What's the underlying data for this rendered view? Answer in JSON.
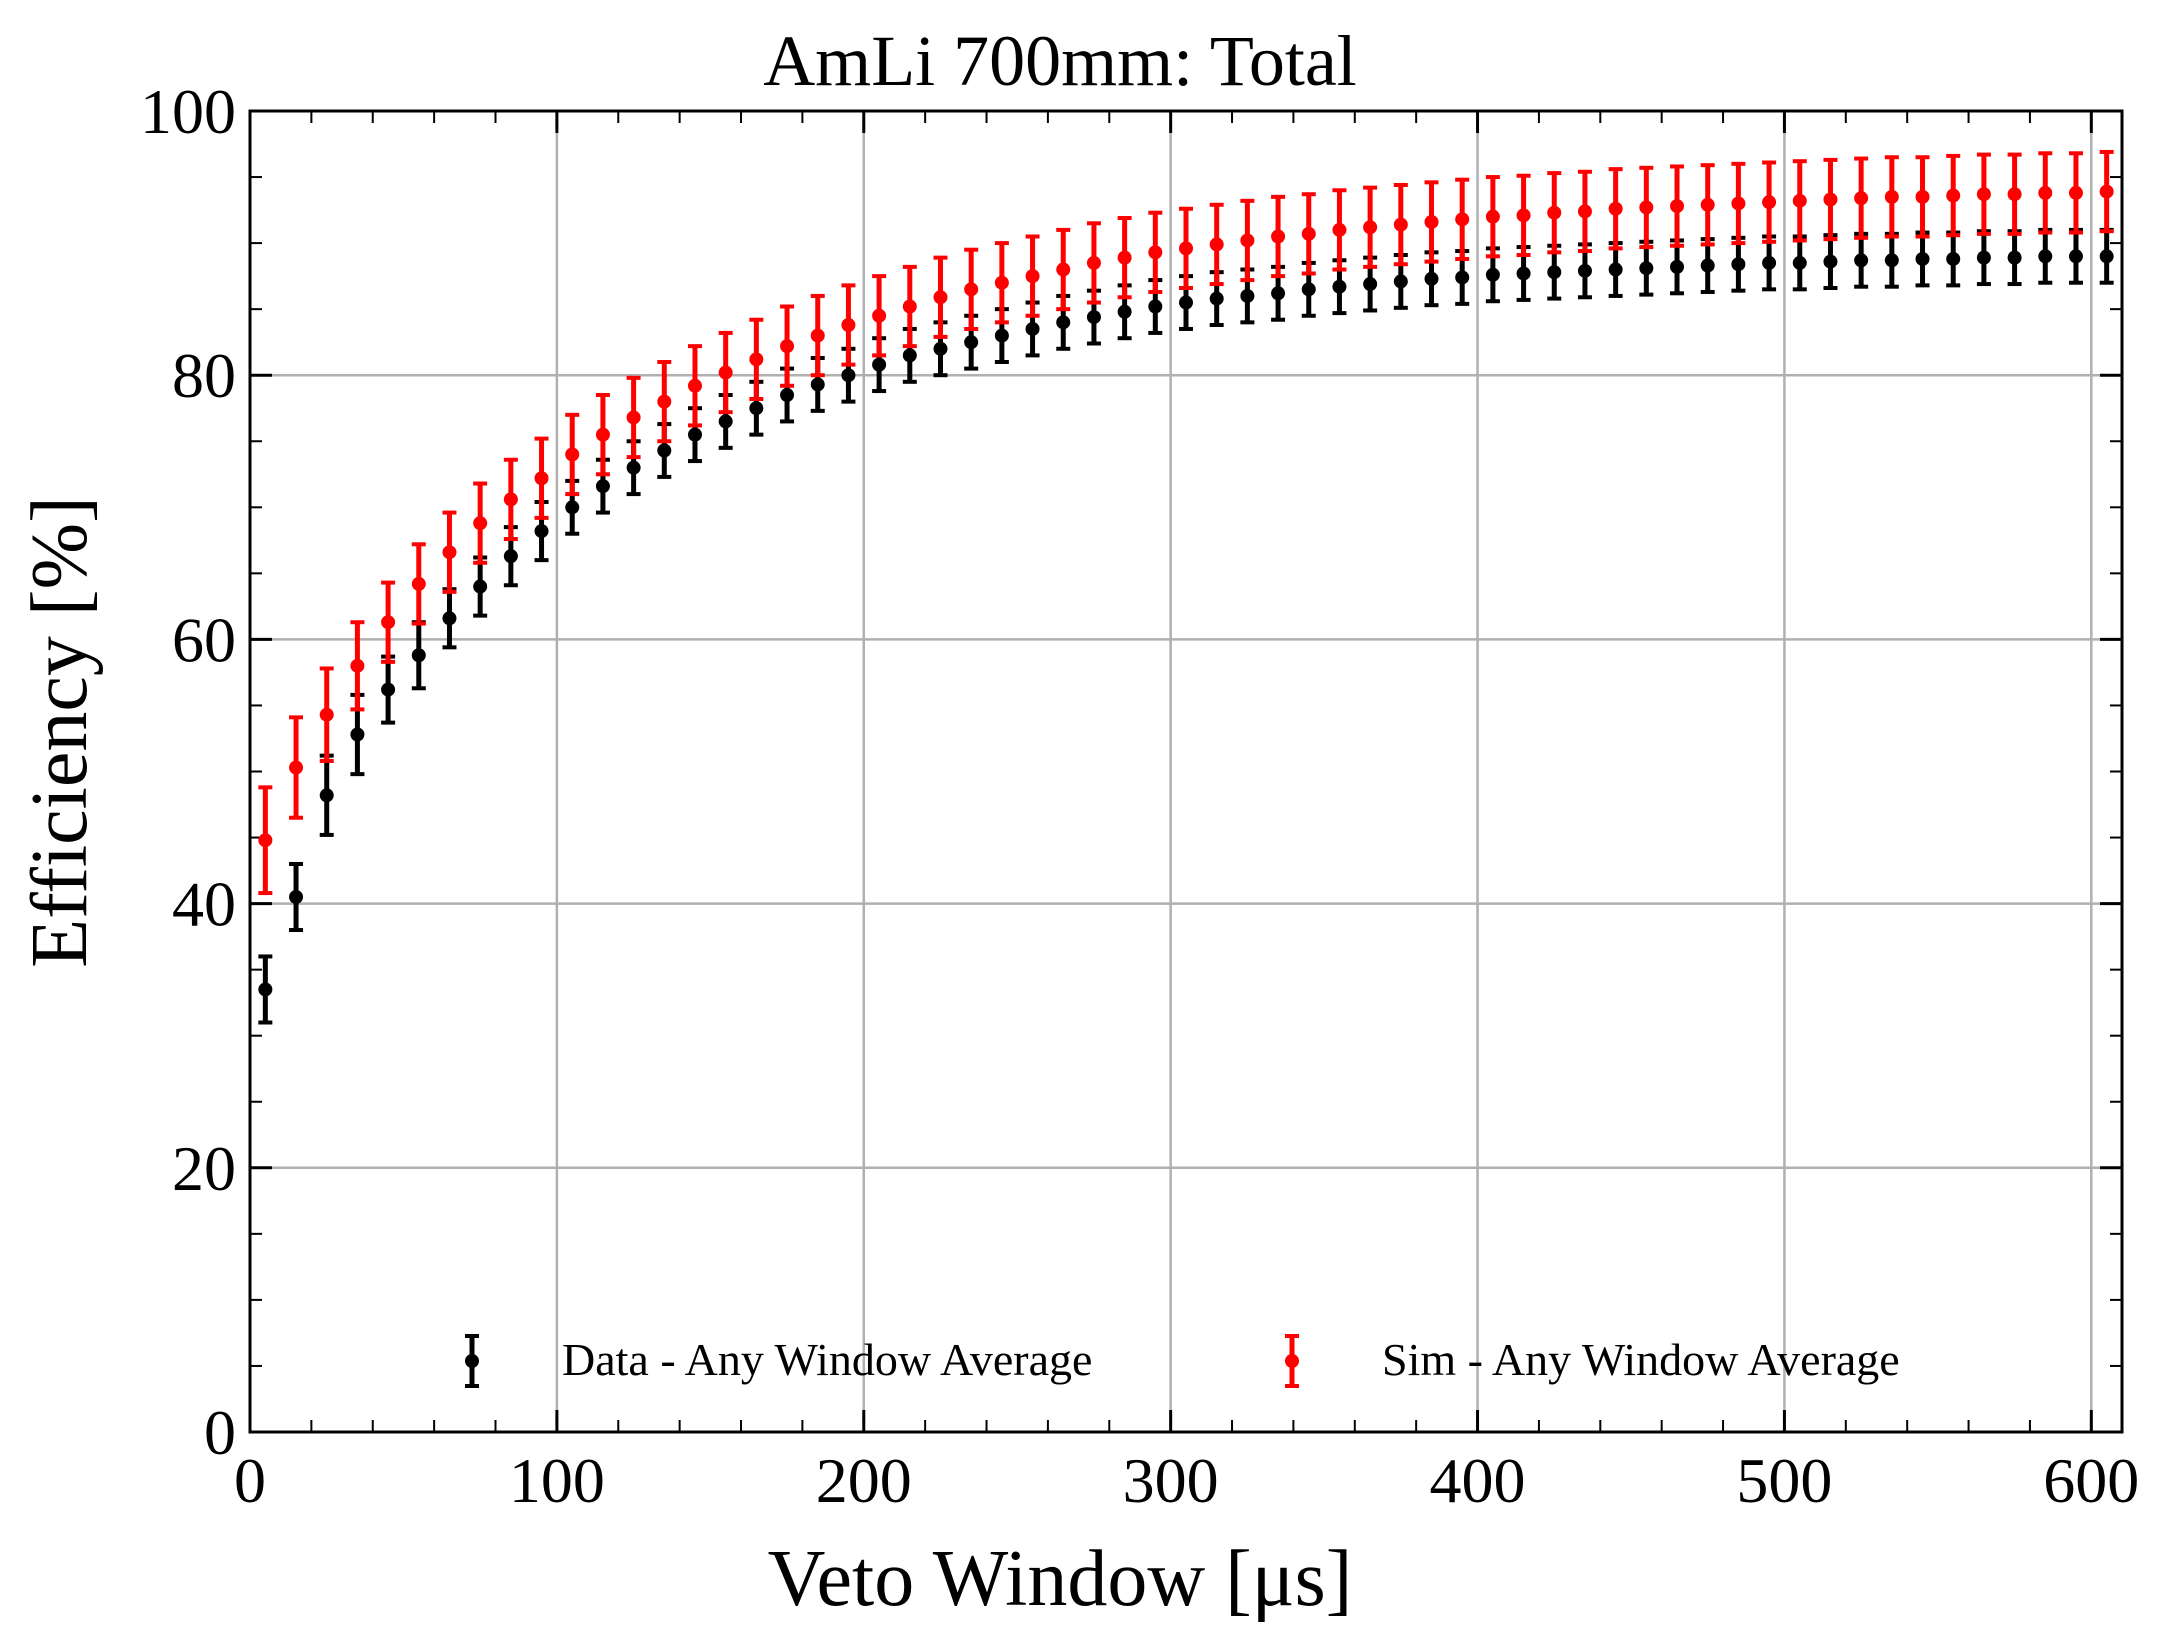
{
  "chart_data": {
    "type": "scatter",
    "title": "AmLi 700mm: Total",
    "xlabel": "Veto Window [μs]",
    "ylabel": "Efficiency [%]",
    "xlim": [
      0,
      610
    ],
    "ylim": [
      0,
      100
    ],
    "xticks": [
      "0",
      "100",
      "200",
      "300",
      "400",
      "500",
      "600"
    ],
    "yticks": [
      "0",
      "20",
      "40",
      "60",
      "80",
      "100"
    ],
    "grid": true,
    "legend_placement": "bottom-center",
    "legend_columns": 2,
    "x": [
      5,
      15,
      25,
      35,
      45,
      55,
      65,
      75,
      85,
      95,
      105,
      115,
      125,
      135,
      145,
      155,
      165,
      175,
      185,
      195,
      205,
      215,
      225,
      235,
      245,
      255,
      265,
      275,
      285,
      295,
      305,
      315,
      325,
      335,
      345,
      355,
      365,
      375,
      385,
      395,
      405,
      415,
      425,
      435,
      445,
      455,
      465,
      475,
      485,
      495,
      505,
      515,
      525,
      535,
      545,
      555,
      565,
      575,
      585,
      595,
      605
    ],
    "series": [
      {
        "name": "Data - Any Window Average",
        "color": "#000000",
        "values": [
          33.5,
          40.5,
          48.2,
          52.8,
          56.2,
          58.8,
          61.6,
          64.0,
          66.3,
          68.2,
          70.0,
          71.6,
          73.0,
          74.3,
          75.5,
          76.5,
          77.5,
          78.5,
          79.3,
          80.0,
          80.8,
          81.5,
          82.0,
          82.5,
          83.0,
          83.5,
          84.0,
          84.4,
          84.8,
          85.2,
          85.5,
          85.8,
          86.0,
          86.2,
          86.5,
          86.7,
          86.9,
          87.1,
          87.3,
          87.4,
          87.6,
          87.7,
          87.8,
          87.9,
          88.0,
          88.1,
          88.2,
          88.3,
          88.4,
          88.5,
          88.5,
          88.6,
          88.7,
          88.7,
          88.8,
          88.8,
          88.9,
          88.9,
          89.0,
          89.0,
          89.0
        ],
        "err": [
          2.5,
          2.5,
          3.0,
          3.0,
          2.5,
          2.5,
          2.2,
          2.2,
          2.2,
          2.2,
          2.0,
          2.0,
          2.0,
          2.0,
          2.0,
          2.0,
          2.0,
          2.0,
          2.0,
          2.0,
          2.0,
          2.0,
          2.0,
          2.0,
          2.0,
          2.0,
          2.0,
          2.0,
          2.0,
          2.0,
          2.0,
          2.0,
          2.0,
          2.0,
          2.0,
          2.0,
          2.0,
          2.0,
          2.0,
          2.0,
          2.0,
          2.0,
          2.0,
          2.0,
          2.0,
          2.0,
          2.0,
          2.0,
          2.0,
          2.0,
          2.0,
          2.0,
          2.0,
          2.0,
          2.0,
          2.0,
          2.0,
          2.0,
          2.0,
          2.0,
          2.0
        ]
      },
      {
        "name": "Sim - Any Window Average",
        "color": "#ff0000",
        "values": [
          44.8,
          50.3,
          54.3,
          58.0,
          61.3,
          64.2,
          66.6,
          68.8,
          70.6,
          72.2,
          74.0,
          75.5,
          76.8,
          78.0,
          79.2,
          80.2,
          81.2,
          82.2,
          83.0,
          83.8,
          84.5,
          85.2,
          85.9,
          86.5,
          87.0,
          87.5,
          88.0,
          88.5,
          88.9,
          89.3,
          89.6,
          89.9,
          90.2,
          90.5,
          90.7,
          91.0,
          91.2,
          91.4,
          91.6,
          91.8,
          92.0,
          92.1,
          92.3,
          92.4,
          92.6,
          92.7,
          92.8,
          92.9,
          93.0,
          93.1,
          93.2,
          93.3,
          93.4,
          93.5,
          93.5,
          93.6,
          93.7,
          93.7,
          93.8,
          93.8,
          93.9
        ],
        "err": [
          4.0,
          3.8,
          3.5,
          3.3,
          3.0,
          3.0,
          3.0,
          3.0,
          3.0,
          3.0,
          3.0,
          3.0,
          3.0,
          3.0,
          3.0,
          3.0,
          3.0,
          3.0,
          3.0,
          3.0,
          3.0,
          3.0,
          3.0,
          3.0,
          3.0,
          3.0,
          3.0,
          3.0,
          3.0,
          3.0,
          3.0,
          3.0,
          3.0,
          3.0,
          3.0,
          3.0,
          3.0,
          3.0,
          3.0,
          3.0,
          3.0,
          3.0,
          3.0,
          3.0,
          3.0,
          3.0,
          3.0,
          3.0,
          3.0,
          3.0,
          3.0,
          3.0,
          3.0,
          3.0,
          3.0,
          3.0,
          3.0,
          3.0,
          3.0,
          3.0,
          3.0
        ]
      }
    ]
  }
}
